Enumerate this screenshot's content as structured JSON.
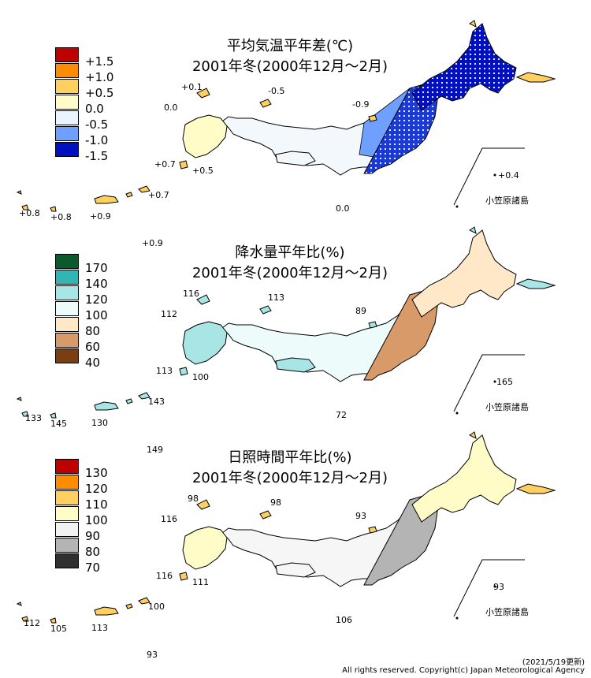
{
  "panels": [
    {
      "title": "平均気温平年差(℃)",
      "subtitle": "2001年冬(2000年12月～2月)",
      "legend": [
        {
          "label": "+1.5",
          "color": "#c00000"
        },
        {
          "label": "+1.0",
          "color": "#ff8c00"
        },
        {
          "label": "+0.5",
          "color": "#ffd060"
        },
        {
          "label": "0.0",
          "color": "#fffcc8"
        },
        {
          "label": "-0.5",
          "color": "#e8f4ff"
        },
        {
          "label": "-1.0",
          "color": "#6fa0ff"
        },
        {
          "label": "-1.5",
          "color": "#0010c0"
        }
      ],
      "values": [
        "+0.1",
        "-0.5",
        "0.0",
        "-0.9",
        "+0.7",
        "+0.5",
        "+0.4",
        "+0.7",
        "+0.8",
        "+0.8",
        "+0.9",
        "0.0",
        "+0.9"
      ]
    },
    {
      "title": "降水量平年比(%)",
      "subtitle": "2001年冬(2000年12月～2月)",
      "legend": [
        {
          "label": "170",
          "color": "#0b5a2c"
        },
        {
          "label": "140",
          "color": "#33b5b5"
        },
        {
          "label": "120",
          "color": "#a8e6e6"
        },
        {
          "label": "100",
          "color": "#eefbfb"
        },
        {
          "label": "80",
          "color": "#ffe8c8"
        },
        {
          "label": "60",
          "color": "#d99a6a"
        },
        {
          "label": "40",
          "color": "#7a3e10"
        }
      ],
      "values": [
        "116",
        "113",
        "112",
        "89",
        "113",
        "100",
        "165",
        "133",
        "145",
        "130",
        "143",
        "72",
        "149"
      ]
    },
    {
      "title": "日照時間平年比(%)",
      "subtitle": "2001年冬(2000年12月～2月)",
      "legend": [
        {
          "label": "130",
          "color": "#c00000"
        },
        {
          "label": "120",
          "color": "#ff8c00"
        },
        {
          "label": "110",
          "color": "#ffd060"
        },
        {
          "label": "100",
          "color": "#fffcc8"
        },
        {
          "label": "90",
          "color": "#f2f2f2"
        },
        {
          "label": "80",
          "color": "#b4b4b4"
        },
        {
          "label": "70",
          "color": "#303030"
        }
      ],
      "values": [
        "98",
        "98",
        "116",
        "93",
        "116",
        "111",
        "93",
        "112",
        "105",
        "113",
        "100",
        "106",
        "93"
      ]
    }
  ],
  "ogasawara_label": "小笠原諸島",
  "footer": {
    "updated": "(2021/5/19更新)",
    "copyright": "All rights reserved. Copyright(c) Japan Meteorological Agency"
  }
}
